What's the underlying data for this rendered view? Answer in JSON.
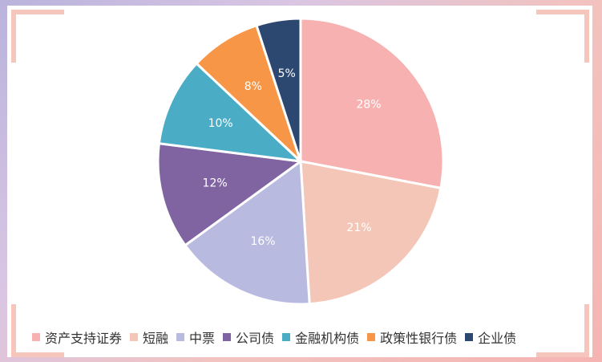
{
  "chart_data": {
    "type": "pie",
    "categories": [
      "资产支持证券",
      "短融",
      "中票",
      "公司债",
      "金融机构债",
      "政策性银行债",
      "企业债"
    ],
    "values": [
      28,
      21,
      16,
      12,
      10,
      8,
      5
    ],
    "labels": [
      "28%",
      "21%",
      "16%",
      "12%",
      "10%",
      "8%",
      "5%"
    ],
    "colors": [
      "#f7b1b1",
      "#f3c6b7",
      "#b9bae0",
      "#8064a2",
      "#4bacc6",
      "#f79646",
      "#2c4770"
    ],
    "legend_position": "bottom",
    "direction": "clockwise from top"
  }
}
